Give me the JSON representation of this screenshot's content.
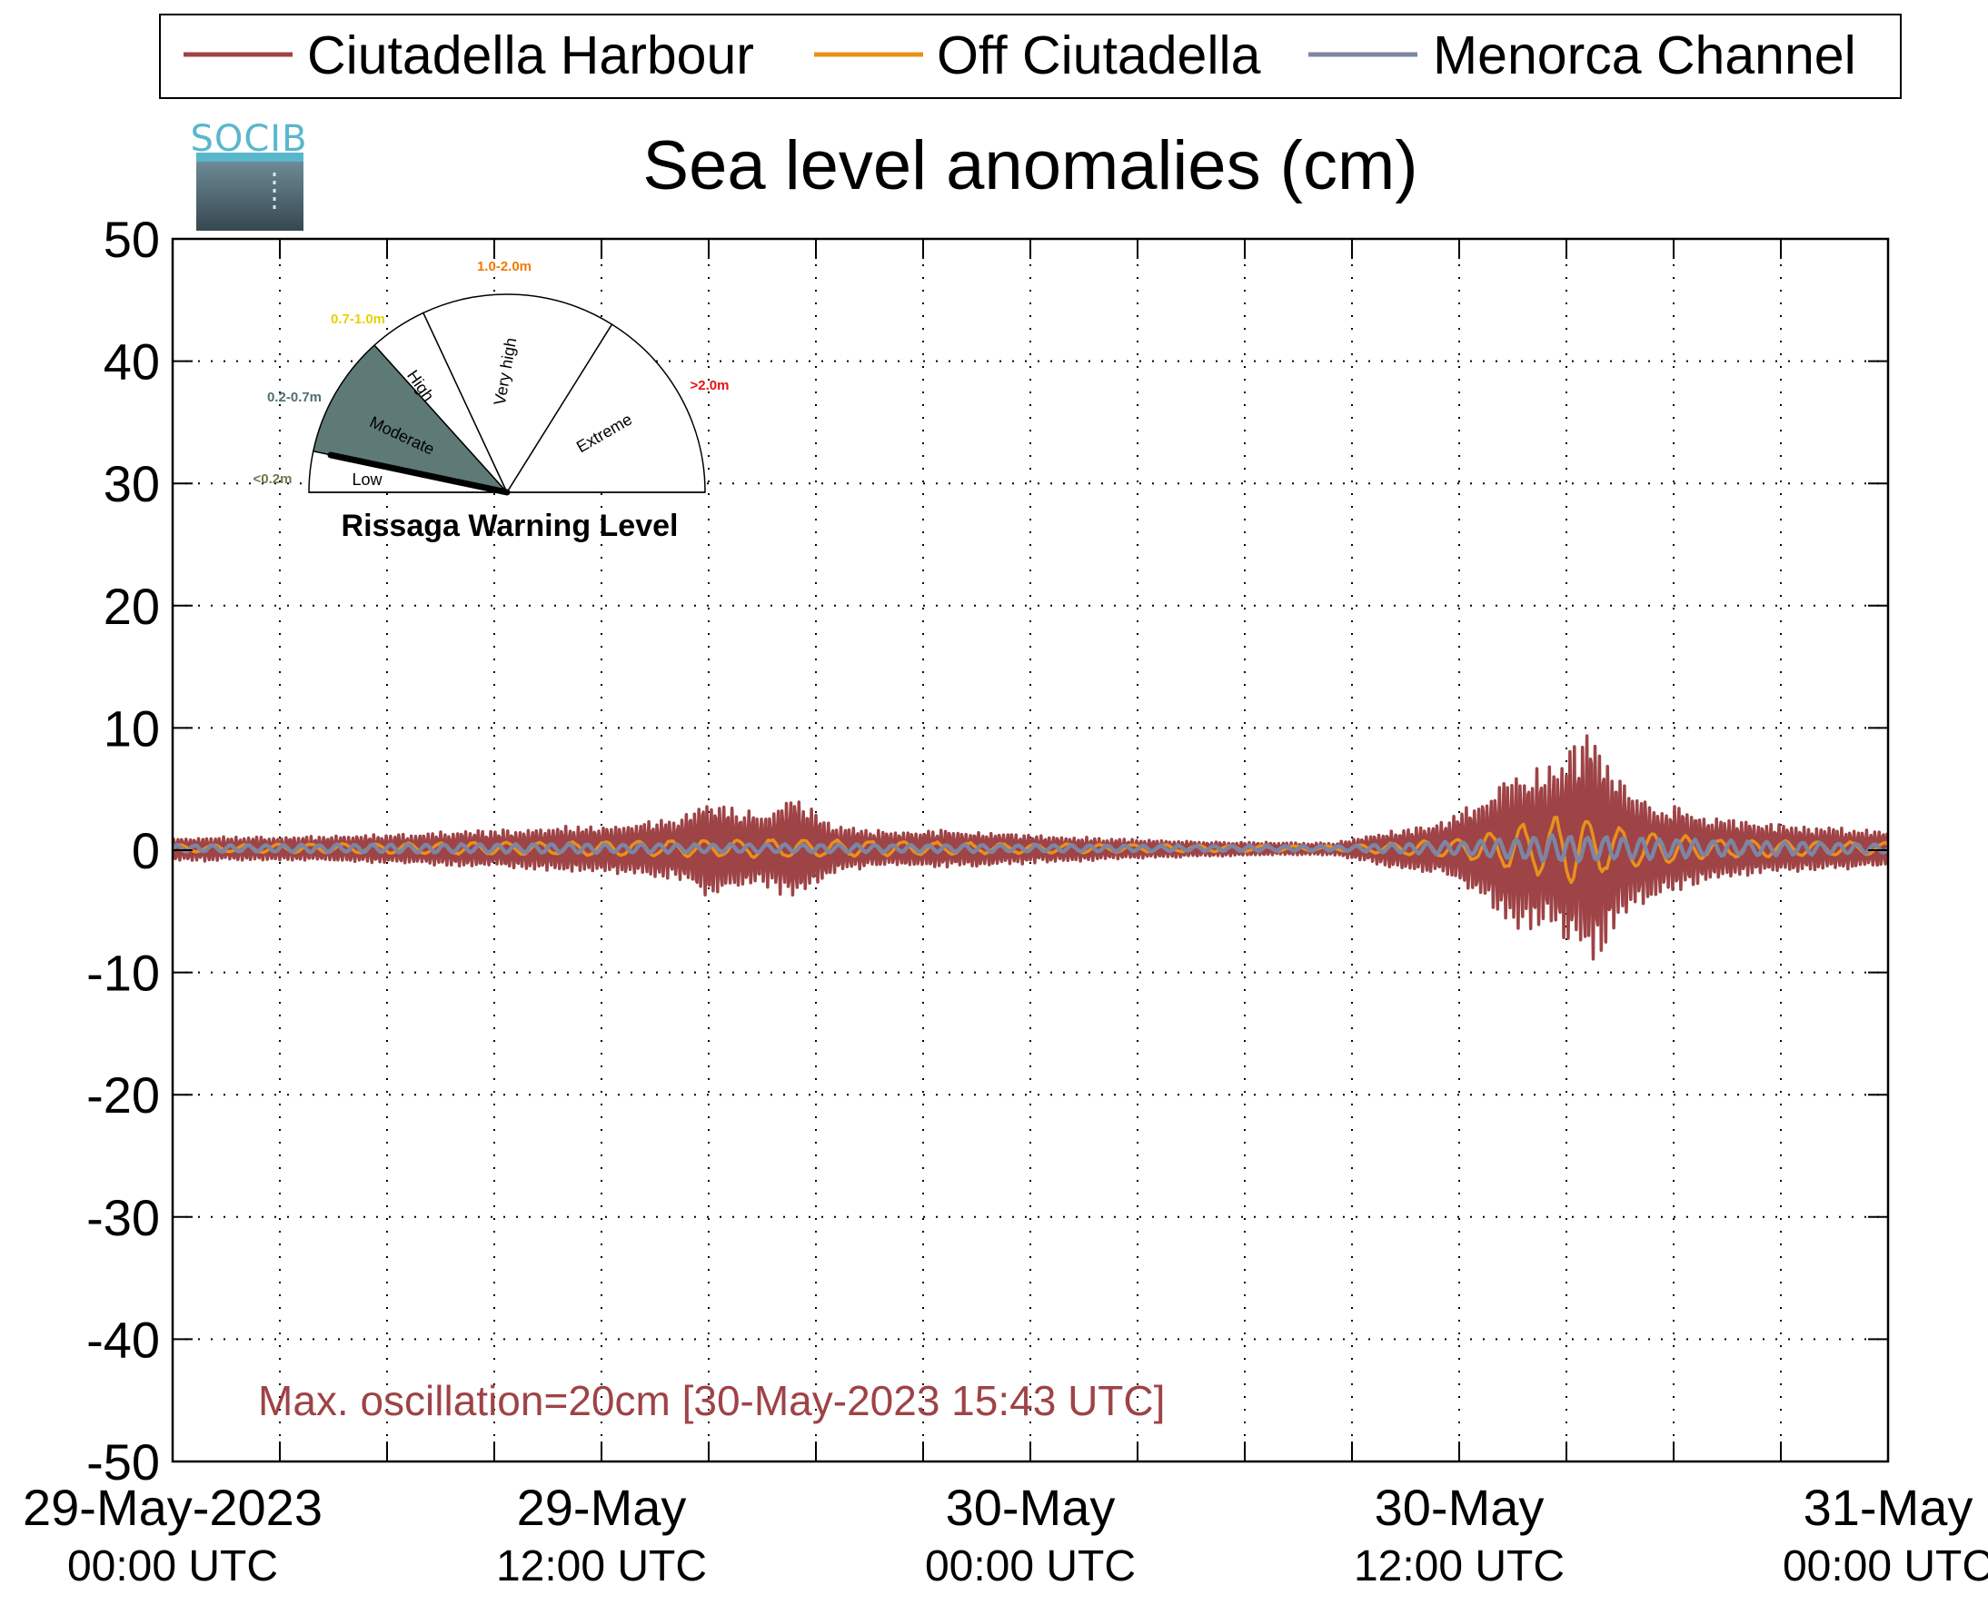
{
  "chart_data": {
    "type": "line",
    "title": "Sea level anomalies (cm)",
    "xlabel": "",
    "ylabel": "",
    "ylim": [
      -50,
      50
    ],
    "yticks": [
      "50",
      "40",
      "30",
      "20",
      "10",
      "0",
      "-10",
      "-20",
      "-30",
      "-40",
      "-50"
    ],
    "xlim": [
      "2023-05-29T00:00Z",
      "2023-05-31T00:00Z"
    ],
    "xticks": [
      {
        "date": "29-May-2023",
        "time": "00:00 UTC"
      },
      {
        "date": "29-May",
        "time": "12:00 UTC"
      },
      {
        "date": "30-May",
        "time": "00:00 UTC"
      },
      {
        "date": "30-May",
        "time": "12:00 UTC"
      },
      {
        "date": "31-May",
        "time": "00:00 UTC"
      }
    ],
    "grid": true,
    "legend_position": "top",
    "series": [
      {
        "name": "Ciutadella Harbour",
        "color": "#9e4346",
        "envelope": [
          {
            "x": "2023-05-29T00:00Z",
            "amplitude": 1.0
          },
          {
            "x": "2023-05-29T03:00Z",
            "amplitude": 1.0
          },
          {
            "x": "2023-05-29T06:00Z",
            "amplitude": 1.2
          },
          {
            "x": "2023-05-29T09:00Z",
            "amplitude": 1.6
          },
          {
            "x": "2023-05-29T12:00Z",
            "amplitude": 2.0
          },
          {
            "x": "2023-05-29T14:00Z",
            "amplitude": 2.5
          },
          {
            "x": "2023-05-29T15:00Z",
            "amplitude": 4.0
          },
          {
            "x": "2023-05-29T16:30Z",
            "amplitude": 3.0
          },
          {
            "x": "2023-05-29T17:30Z",
            "amplitude": 4.5
          },
          {
            "x": "2023-05-29T18:30Z",
            "amplitude": 2.0
          },
          {
            "x": "2023-05-29T20:00Z",
            "amplitude": 1.5
          },
          {
            "x": "2023-05-29T22:00Z",
            "amplitude": 1.6
          },
          {
            "x": "2023-05-30T00:00Z",
            "amplitude": 1.2
          },
          {
            "x": "2023-05-30T03:00Z",
            "amplitude": 0.8
          },
          {
            "x": "2023-05-30T06:00Z",
            "amplitude": 0.6
          },
          {
            "x": "2023-05-30T08:30Z",
            "amplitude": 0.5
          },
          {
            "x": "2023-05-30T10:00Z",
            "amplitude": 1.5
          },
          {
            "x": "2023-05-30T11:30Z",
            "amplitude": 2.2
          },
          {
            "x": "2023-05-30T12:30Z",
            "amplitude": 4.0
          },
          {
            "x": "2023-05-30T13:30Z",
            "amplitude": 6.5
          },
          {
            "x": "2023-05-30T14:30Z",
            "amplitude": 7.0
          },
          {
            "x": "2023-05-30T15:43Z",
            "amplitude": 10.0
          },
          {
            "x": "2023-05-30T16:30Z",
            "amplitude": 6.0
          },
          {
            "x": "2023-05-30T17:30Z",
            "amplitude": 4.0
          },
          {
            "x": "2023-05-30T19:00Z",
            "amplitude": 2.8
          },
          {
            "x": "2023-05-30T21:00Z",
            "amplitude": 2.0
          },
          {
            "x": "2023-05-31T00:00Z",
            "amplitude": 1.5
          }
        ]
      },
      {
        "name": "Off Ciutadella",
        "color": "#e8901c",
        "envelope": [
          {
            "x": "2023-05-29T00:00Z",
            "amplitude": 0.3
          },
          {
            "x": "2023-05-29T12:00Z",
            "amplitude": 0.6
          },
          {
            "x": "2023-05-29T17:00Z",
            "amplitude": 0.8
          },
          {
            "x": "2023-05-30T00:00Z",
            "amplitude": 0.4
          },
          {
            "x": "2023-05-30T08:30Z",
            "amplitude": 0.2
          },
          {
            "x": "2023-05-30T12:00Z",
            "amplitude": 0.8
          },
          {
            "x": "2023-05-30T15:00Z",
            "amplitude": 3.0
          },
          {
            "x": "2023-05-30T16:30Z",
            "amplitude": 1.8
          },
          {
            "x": "2023-05-30T19:00Z",
            "amplitude": 0.8
          },
          {
            "x": "2023-05-31T00:00Z",
            "amplitude": 0.5
          }
        ]
      },
      {
        "name": "Menorca Channel",
        "color": "#7d85a3",
        "envelope": [
          {
            "x": "2023-05-29T00:00Z",
            "amplitude": 0.3
          },
          {
            "x": "2023-05-29T12:00Z",
            "amplitude": 0.4
          },
          {
            "x": "2023-05-30T00:00Z",
            "amplitude": 0.3
          },
          {
            "x": "2023-05-30T08:30Z",
            "amplitude": 0.2
          },
          {
            "x": "2023-05-30T12:00Z",
            "amplitude": 0.6
          },
          {
            "x": "2023-05-30T15:00Z",
            "amplitude": 1.2
          },
          {
            "x": "2023-05-30T19:00Z",
            "amplitude": 0.7
          },
          {
            "x": "2023-05-31T00:00Z",
            "amplitude": 0.4
          }
        ]
      }
    ],
    "annotation": {
      "text": "Max. oscillation=20cm [30-May-2023 15:43 UTC]",
      "color": "#9e4346"
    }
  },
  "logo": {
    "text": "SOCIB",
    "color": "#59b7cc"
  },
  "warning_gauge": {
    "title": "Rissaga Warning Level",
    "current_level": "Moderate",
    "sectors": [
      {
        "label": "Low",
        "range": "<0.2m",
        "range_color": "#6b7a4c",
        "fill": "#ffffff"
      },
      {
        "label": "Moderate",
        "range": "0.2-0.7m",
        "range_color": "#4f6f6f",
        "fill": "#5e7a77"
      },
      {
        "label": "High",
        "range": "0.7-1.0m",
        "range_color": "#e8d000",
        "fill": "#ffffff"
      },
      {
        "label": "Very high",
        "range": "1.0-2.0m",
        "range_color": "#f07a00",
        "fill": "#ffffff"
      },
      {
        "label": "Extreme",
        "range": ">2.0m",
        "range_color": "#e81010",
        "fill": "#ffffff"
      }
    ]
  }
}
